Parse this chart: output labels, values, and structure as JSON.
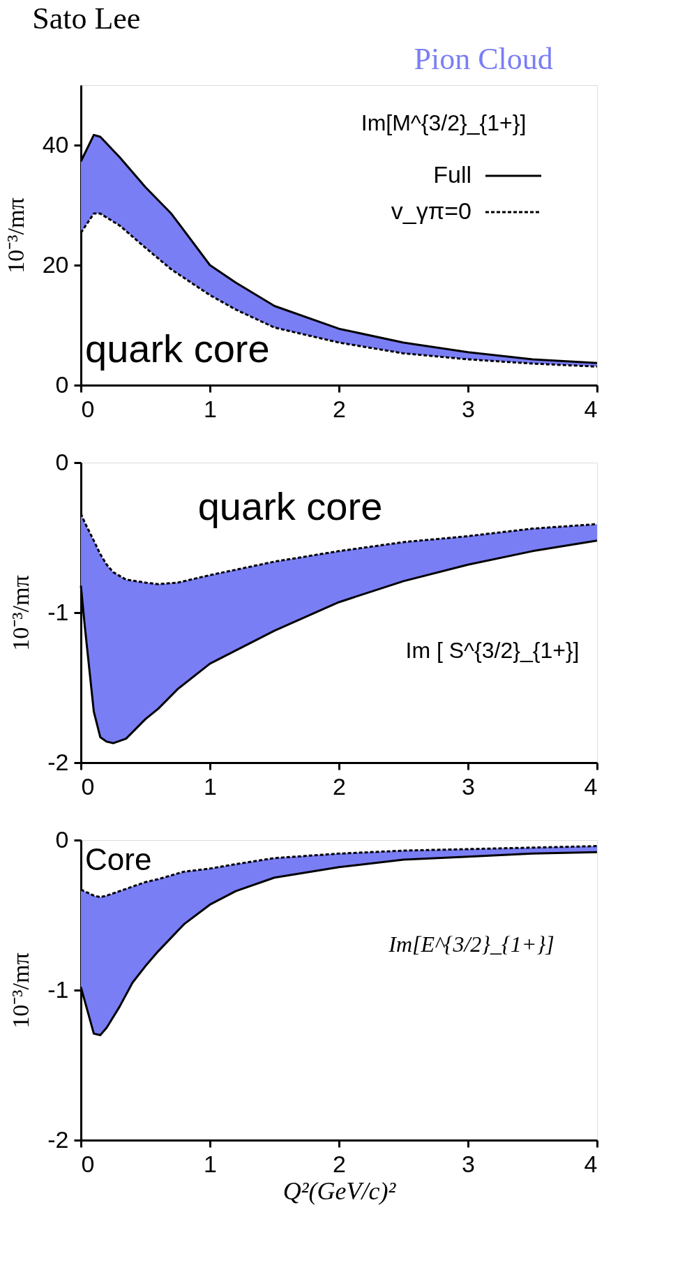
{
  "chart_data": [
    {
      "type": "line",
      "title": "Sato Lee",
      "ylabel": "10⁻³/mπ",
      "xlim": [
        0,
        4
      ],
      "xticks": [
        0,
        1,
        2,
        3,
        4
      ],
      "ylim": [
        0,
        50
      ],
      "yticks": [
        0,
        20,
        40
      ],
      "grid": false,
      "legend": "top right",
      "annotations": [
        "Im[M^{3/2}_{1+}]",
        "quark core"
      ],
      "series": [
        {
          "name": "Pion Cloud",
          "type": "area",
          "color": "#7a7ef5"
        },
        {
          "name": "Full",
          "type": "line",
          "line_style": "solid",
          "color": "#000000",
          "x": [
            0,
            0.1,
            0.15,
            0.3,
            0.5,
            0.7,
            1,
            1.2,
            1.5,
            2,
            2.5,
            3,
            3.5,
            4
          ],
          "values": [
            37.3,
            41.7,
            41.4,
            38,
            33,
            28.6,
            20,
            17.1,
            13.2,
            9.4,
            7.1,
            5.5,
            4.3,
            3.7
          ],
          "lower": [
            25.4,
            28.6,
            28.6,
            26.6,
            22.9,
            19.3,
            15,
            12.6,
            9.6,
            7.1,
            5.3,
            4.3,
            3.6,
            3.1
          ],
          "upper": [
            37.3,
            41.7,
            41.4,
            38,
            33,
            28.6,
            20,
            17.1,
            13.2,
            9.4,
            7.1,
            5.5,
            4.3,
            3.7
          ]
        },
        {
          "name": "v_γπ=0",
          "type": "line",
          "line_style": "dashed",
          "color": "#000000",
          "x": [
            0,
            0.1,
            0.15,
            0.3,
            0.5,
            0.7,
            1,
            1.2,
            1.5,
            2,
            2.5,
            3,
            3.5,
            4
          ],
          "values": [
            25.4,
            28.6,
            28.6,
            26.6,
            22.9,
            19.3,
            15,
            12.6,
            9.6,
            7.1,
            5.3,
            4.3,
            3.6,
            3.1
          ]
        }
      ]
    },
    {
      "type": "line",
      "ylabel": "10⁻³/mπ",
      "xlim": [
        0,
        4
      ],
      "xticks": [
        0,
        1,
        2,
        3,
        4
      ],
      "ylim": [
        -2,
        0
      ],
      "yticks": [
        -2,
        -1,
        0
      ],
      "grid": false,
      "annotations": [
        "quark core",
        "Im [ S^{3/2}_{1+}]"
      ],
      "series": [
        {
          "type": "area",
          "color": "#7a7ef5"
        },
        {
          "type": "line",
          "line_style": "solid",
          "color": "#000000",
          "x": [
            0,
            0.03,
            0.1,
            0.15,
            0.2,
            0.25,
            0.35,
            0.5,
            0.6,
            0.75,
            1,
            1.5,
            2,
            2.5,
            3,
            3.5,
            4
          ],
          "values": [
            -0.82,
            -1.09,
            -1.66,
            -1.83,
            -1.86,
            -1.87,
            -1.84,
            -1.71,
            -1.64,
            -1.51,
            -1.34,
            -1.12,
            -0.93,
            -0.79,
            -0.68,
            -0.59,
            -0.52
          ],
          "lower": [
            -0.82,
            -1.09,
            -1.66,
            -1.83,
            -1.86,
            -1.87,
            -1.84,
            -1.71,
            -1.64,
            -1.51,
            -1.34,
            -1.12,
            -0.93,
            -0.79,
            -0.68,
            -0.59,
            -0.52
          ],
          "upper": [
            -0.34,
            -0.4,
            -0.52,
            -0.61,
            -0.68,
            -0.73,
            -0.78,
            -0.8,
            -0.81,
            -0.8,
            -0.75,
            -0.66,
            -0.59,
            -0.53,
            -0.49,
            -0.44,
            -0.41
          ]
        },
        {
          "type": "line",
          "line_style": "dashed",
          "color": "#000000",
          "x": [
            0,
            0.03,
            0.1,
            0.15,
            0.2,
            0.25,
            0.35,
            0.5,
            0.6,
            0.75,
            1,
            1.5,
            2,
            2.5,
            3,
            3.5,
            4
          ],
          "values": [
            -0.34,
            -0.4,
            -0.52,
            -0.61,
            -0.68,
            -0.73,
            -0.78,
            -0.8,
            -0.81,
            -0.8,
            -0.75,
            -0.66,
            -0.59,
            -0.53,
            -0.49,
            -0.44,
            -0.41
          ]
        }
      ]
    },
    {
      "type": "line",
      "xlabel": "Q²(GeV/c)²",
      "ylabel": "10⁻³/mπ",
      "xlim": [
        0,
        4
      ],
      "xticks": [
        0,
        1,
        2,
        3,
        4
      ],
      "ylim": [
        -2,
        0
      ],
      "yticks": [
        -2,
        -1,
        0
      ],
      "grid": false,
      "annotations": [
        "Core",
        "Im[E^{3/2}_{1+}]"
      ],
      "series": [
        {
          "type": "area",
          "color": "#7a7ef5"
        },
        {
          "type": "line",
          "line_style": "solid",
          "color": "#000000",
          "x": [
            0,
            0.1,
            0.15,
            0.2,
            0.3,
            0.4,
            0.5,
            0.6,
            0.8,
            1,
            1.2,
            1.5,
            2,
            2.5,
            3,
            3.5,
            4
          ],
          "values": [
            -0.98,
            -1.29,
            -1.3,
            -1.25,
            -1.11,
            -0.95,
            -0.84,
            -0.74,
            -0.56,
            -0.43,
            -0.34,
            -0.25,
            -0.18,
            -0.13,
            -0.11,
            -0.09,
            -0.08
          ],
          "lower": [
            -0.98,
            -1.29,
            -1.3,
            -1.25,
            -1.11,
            -0.95,
            -0.84,
            -0.74,
            -0.56,
            -0.43,
            -0.34,
            -0.25,
            -0.18,
            -0.13,
            -0.11,
            -0.09,
            -0.08
          ],
          "upper": [
            -0.33,
            -0.37,
            -0.38,
            -0.37,
            -0.34,
            -0.31,
            -0.28,
            -0.26,
            -0.21,
            -0.19,
            -0.16,
            -0.12,
            -0.09,
            -0.07,
            -0.06,
            -0.05,
            -0.04
          ]
        },
        {
          "type": "line",
          "line_style": "dashed",
          "color": "#000000",
          "x": [
            0,
            0.1,
            0.15,
            0.2,
            0.3,
            0.4,
            0.5,
            0.6,
            0.8,
            1,
            1.2,
            1.5,
            2,
            2.5,
            3,
            3.5,
            4
          ],
          "values": [
            -0.33,
            -0.37,
            -0.38,
            -0.37,
            -0.34,
            -0.31,
            -0.28,
            -0.26,
            -0.21,
            -0.19,
            -0.16,
            -0.12,
            -0.09,
            -0.07,
            -0.06,
            -0.05,
            -0.04
          ]
        }
      ]
    }
  ]
}
